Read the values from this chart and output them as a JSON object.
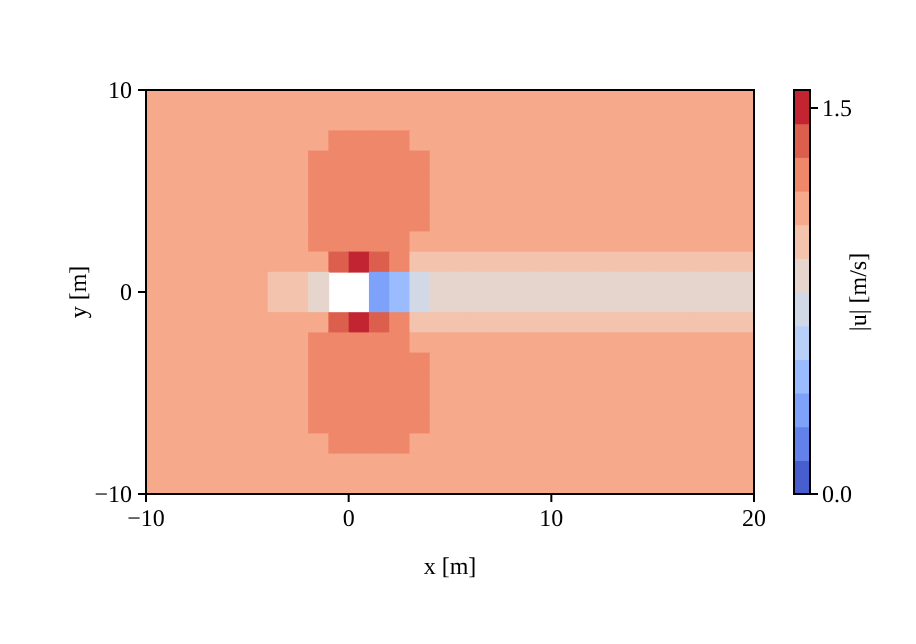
{
  "chart_data": {
    "type": "heatmap",
    "xlabel": "x [m]",
    "ylabel": "y [m]",
    "clabel": "|u| [m/s]",
    "xlim": [
      -10,
      20
    ],
    "xticks": [
      {
        "value": -10,
        "label": "−10"
      },
      0,
      10,
      20
    ],
    "ylim": [
      -10,
      10
    ],
    "yticks": [
      {
        "value": -10,
        "label": "−10"
      },
      0,
      10
    ],
    "clim": [
      0,
      1.57
    ],
    "cticks": [
      {
        "value": 0,
        "label": "0.0"
      },
      1.5
    ],
    "cells": [
      [
        1.1,
        1.1,
        1.1,
        1.1,
        1.1,
        1.1,
        1.1,
        1.1,
        1.1,
        1.1,
        1.1,
        1.1,
        1.1,
        1.1,
        1.1,
        1.1,
        1.1,
        1.1,
        1.1,
        1.1,
        1.1,
        1.1,
        1.1,
        1.1,
        1.1,
        1.1,
        1.1,
        1.1,
        1.1,
        1.1
      ],
      [
        1.1,
        1.1,
        1.1,
        1.1,
        1.1,
        1.1,
        1.1,
        1.1,
        1.1,
        1.1,
        1.1,
        1.1,
        1.1,
        1.1,
        1.1,
        1.1,
        1.1,
        1.1,
        1.1,
        1.1,
        1.1,
        1.1,
        1.1,
        1.1,
        1.1,
        1.1,
        1.1,
        1.1,
        1.1,
        1.1
      ],
      [
        1.1,
        1.1,
        1.1,
        1.1,
        1.1,
        1.1,
        1.1,
        1.1,
        1.1,
        1.25,
        1.25,
        1.25,
        1.25,
        1.1,
        1.1,
        1.1,
        1.1,
        1.1,
        1.1,
        1.1,
        1.1,
        1.1,
        1.1,
        1.1,
        1.1,
        1.1,
        1.1,
        1.1,
        1.1,
        1.1
      ],
      [
        1.1,
        1.1,
        1.1,
        1.1,
        1.1,
        1.1,
        1.1,
        1.1,
        1.25,
        1.25,
        1.25,
        1.25,
        1.25,
        1.25,
        1.1,
        1.1,
        1.1,
        1.1,
        1.1,
        1.1,
        1.1,
        1.1,
        1.1,
        1.1,
        1.1,
        1.1,
        1.1,
        1.1,
        1.1,
        1.1
      ],
      [
        1.1,
        1.1,
        1.1,
        1.1,
        1.1,
        1.1,
        1.1,
        1.1,
        1.25,
        1.25,
        1.25,
        1.25,
        1.25,
        1.25,
        1.1,
        1.1,
        1.1,
        1.1,
        1.1,
        1.1,
        1.1,
        1.1,
        1.1,
        1.1,
        1.1,
        1.1,
        1.1,
        1.1,
        1.1,
        1.1
      ],
      [
        1.1,
        1.1,
        1.1,
        1.1,
        1.1,
        1.1,
        1.1,
        1.1,
        1.25,
        1.25,
        1.25,
        1.25,
        1.25,
        1.25,
        1.1,
        1.1,
        1.1,
        1.1,
        1.1,
        1.1,
        1.1,
        1.1,
        1.1,
        1.1,
        1.1,
        1.1,
        1.1,
        1.1,
        1.1,
        1.1
      ],
      [
        1.1,
        1.1,
        1.1,
        1.1,
        1.1,
        1.1,
        1.1,
        1.1,
        1.25,
        1.25,
        1.25,
        1.25,
        1.25,
        1.25,
        1.1,
        1.1,
        1.1,
        1.1,
        1.1,
        1.1,
        1.1,
        1.1,
        1.1,
        1.1,
        1.1,
        1.1,
        1.1,
        1.1,
        1.1,
        1.1
      ],
      [
        1.1,
        1.1,
        1.1,
        1.1,
        1.1,
        1.1,
        1.1,
        1.1,
        1.25,
        1.25,
        1.25,
        1.25,
        1.25,
        1.1,
        1.1,
        1.1,
        1.1,
        1.1,
        1.1,
        1.1,
        1.1,
        1.1,
        1.1,
        1.1,
        1.1,
        1.1,
        1.1,
        1.1,
        1.1,
        1.1
      ],
      [
        1.1,
        1.1,
        1.1,
        1.1,
        1.1,
        1.1,
        1.1,
        1.1,
        1.1,
        1.4,
        1.5,
        1.4,
        1.25,
        1.0,
        1.0,
        1.0,
        1.0,
        1.0,
        1.0,
        1.0,
        1.0,
        1.0,
        1.0,
        1.0,
        1.0,
        1.0,
        1.0,
        1.0,
        1.0,
        1.0
      ],
      [
        1.1,
        1.1,
        1.1,
        1.1,
        1.1,
        1.1,
        1.0,
        1.0,
        0.9,
        null,
        null,
        0.3,
        0.5,
        0.7,
        0.8,
        0.85,
        0.85,
        0.85,
        0.85,
        0.85,
        0.85,
        0.85,
        0.85,
        0.85,
        0.85,
        0.85,
        0.85,
        0.85,
        0.85,
        0.85
      ],
      [
        1.1,
        1.1,
        1.1,
        1.1,
        1.1,
        1.1,
        1.0,
        1.0,
        0.9,
        null,
        null,
        0.3,
        0.5,
        0.7,
        0.8,
        0.85,
        0.85,
        0.85,
        0.85,
        0.85,
        0.85,
        0.85,
        0.85,
        0.85,
        0.85,
        0.85,
        0.85,
        0.85,
        0.85,
        0.85
      ],
      [
        1.1,
        1.1,
        1.1,
        1.1,
        1.1,
        1.1,
        1.1,
        1.1,
        1.1,
        1.4,
        1.5,
        1.4,
        1.25,
        1.0,
        1.0,
        1.0,
        1.0,
        1.0,
        1.0,
        1.0,
        1.0,
        1.0,
        1.0,
        1.0,
        1.0,
        1.0,
        1.0,
        1.0,
        1.0,
        1.0
      ],
      [
        1.1,
        1.1,
        1.1,
        1.1,
        1.1,
        1.1,
        1.1,
        1.1,
        1.25,
        1.25,
        1.25,
        1.25,
        1.25,
        1.1,
        1.1,
        1.1,
        1.1,
        1.1,
        1.1,
        1.1,
        1.1,
        1.1,
        1.1,
        1.1,
        1.1,
        1.1,
        1.1,
        1.1,
        1.1,
        1.1
      ],
      [
        1.1,
        1.1,
        1.1,
        1.1,
        1.1,
        1.1,
        1.1,
        1.1,
        1.25,
        1.25,
        1.25,
        1.25,
        1.25,
        1.25,
        1.1,
        1.1,
        1.1,
        1.1,
        1.1,
        1.1,
        1.1,
        1.1,
        1.1,
        1.1,
        1.1,
        1.1,
        1.1,
        1.1,
        1.1,
        1.1
      ],
      [
        1.1,
        1.1,
        1.1,
        1.1,
        1.1,
        1.1,
        1.1,
        1.1,
        1.25,
        1.25,
        1.25,
        1.25,
        1.25,
        1.25,
        1.1,
        1.1,
        1.1,
        1.1,
        1.1,
        1.1,
        1.1,
        1.1,
        1.1,
        1.1,
        1.1,
        1.1,
        1.1,
        1.1,
        1.1,
        1.1
      ],
      [
        1.1,
        1.1,
        1.1,
        1.1,
        1.1,
        1.1,
        1.1,
        1.1,
        1.25,
        1.25,
        1.25,
        1.25,
        1.25,
        1.25,
        1.1,
        1.1,
        1.1,
        1.1,
        1.1,
        1.1,
        1.1,
        1.1,
        1.1,
        1.1,
        1.1,
        1.1,
        1.1,
        1.1,
        1.1,
        1.1
      ],
      [
        1.1,
        1.1,
        1.1,
        1.1,
        1.1,
        1.1,
        1.1,
        1.1,
        1.25,
        1.25,
        1.25,
        1.25,
        1.25,
        1.25,
        1.1,
        1.1,
        1.1,
        1.1,
        1.1,
        1.1,
        1.1,
        1.1,
        1.1,
        1.1,
        1.1,
        1.1,
        1.1,
        1.1,
        1.1,
        1.1
      ],
      [
        1.1,
        1.1,
        1.1,
        1.1,
        1.1,
        1.1,
        1.1,
        1.1,
        1.1,
        1.25,
        1.25,
        1.25,
        1.25,
        1.1,
        1.1,
        1.1,
        1.1,
        1.1,
        1.1,
        1.1,
        1.1,
        1.1,
        1.1,
        1.1,
        1.1,
        1.1,
        1.1,
        1.1,
        1.1,
        1.1
      ],
      [
        1.1,
        1.1,
        1.1,
        1.1,
        1.1,
        1.1,
        1.1,
        1.1,
        1.1,
        1.1,
        1.1,
        1.1,
        1.1,
        1.1,
        1.1,
        1.1,
        1.1,
        1.1,
        1.1,
        1.1,
        1.1,
        1.1,
        1.1,
        1.1,
        1.1,
        1.1,
        1.1,
        1.1,
        1.1,
        1.1
      ],
      [
        1.1,
        1.1,
        1.1,
        1.1,
        1.1,
        1.1,
        1.1,
        1.1,
        1.1,
        1.1,
        1.1,
        1.1,
        1.1,
        1.1,
        1.1,
        1.1,
        1.1,
        1.1,
        1.1,
        1.1,
        1.1,
        1.1,
        1.1,
        1.1,
        1.1,
        1.1,
        1.1,
        1.1,
        1.1,
        1.1
      ]
    ]
  }
}
